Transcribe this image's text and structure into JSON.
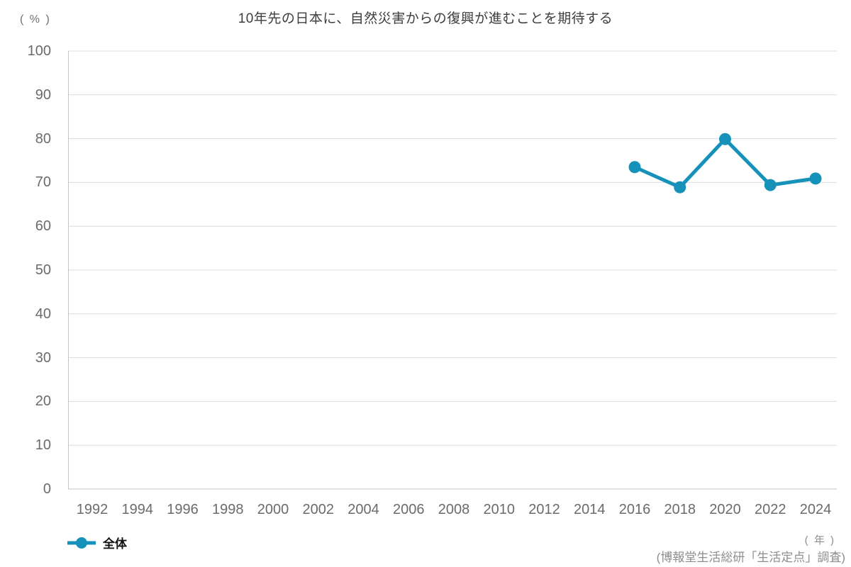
{
  "chart_data": {
    "type": "line",
    "title": "10年先の日本に、自然災害からの復興が進むことを期待する",
    "y_unit_label": "( % )",
    "x_unit_label": "( 年 )",
    "source": "(博報堂生活総研「生活定点」調査)",
    "x_categories": [
      "1992",
      "1994",
      "1996",
      "1998",
      "2000",
      "2002",
      "2004",
      "2006",
      "2008",
      "2010",
      "2012",
      "2014",
      "2016",
      "2018",
      "2020",
      "2022",
      "2024"
    ],
    "y_ticks": [
      0,
      10,
      20,
      30,
      40,
      50,
      60,
      70,
      80,
      90,
      100
    ],
    "ylim": [
      0,
      100
    ],
    "grid": "horizontal",
    "legend_position": "bottom-left",
    "series": [
      {
        "name": "全体",
        "color": "#1591BA",
        "points": [
          {
            "x": "2016",
            "y": 73.5
          },
          {
            "x": "2018",
            "y": 68.9
          },
          {
            "x": "2020",
            "y": 79.9
          },
          {
            "x": "2022",
            "y": 69.4
          },
          {
            "x": "2024",
            "y": 70.9
          }
        ]
      }
    ]
  },
  "colors": {
    "accent": "#1591BA",
    "grid_line": "#dcdcdc",
    "axis_line": "#c6c6c6",
    "tick_text": "#6b6b6b",
    "title_text": "#3d3d3d",
    "legend_text": "#111111",
    "source_text": "#8e8e8e",
    "background": "#ffffff"
  }
}
